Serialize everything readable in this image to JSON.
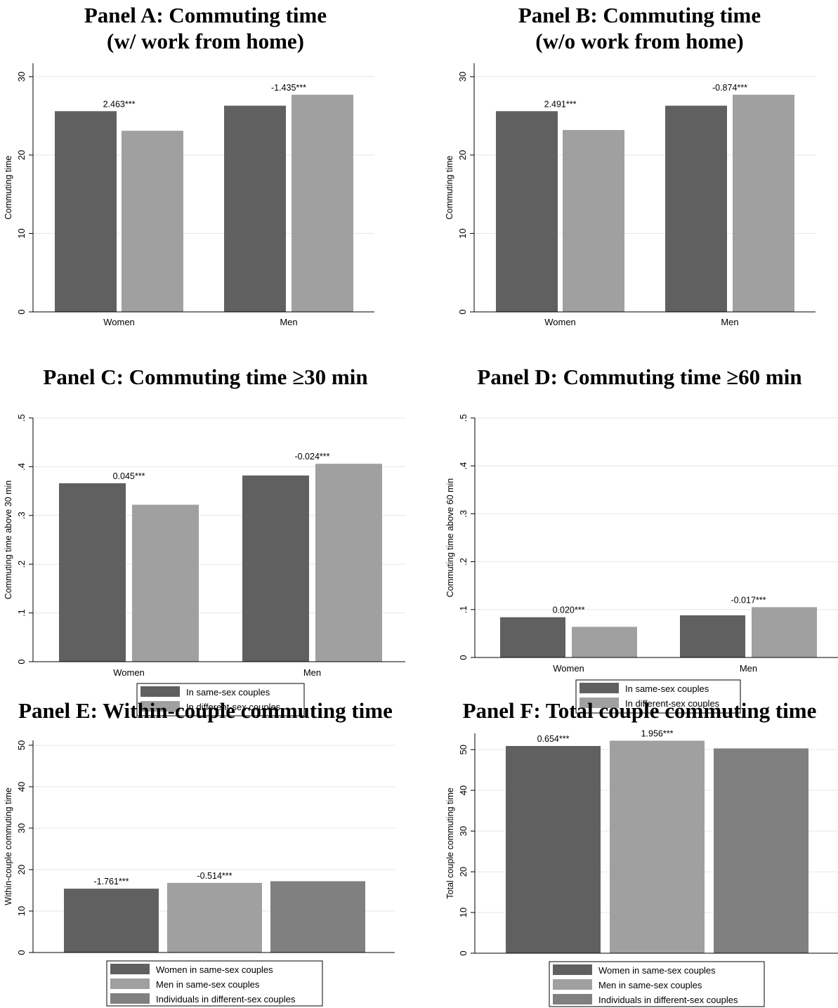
{
  "colors": {
    "dark": "#606060",
    "light": "#a0a0a0",
    "mid": "#808080",
    "grid": "#e6e6e6",
    "axis": "#000000"
  },
  "chart_data": [
    {
      "id": "A",
      "type": "bar",
      "title": [
        "Panel A: Commuting time",
        "(w/ work from home)"
      ],
      "ylabel": "Commuting time",
      "ylim": [
        0,
        31
      ],
      "yticks": [
        "0",
        "10",
        "20",
        "30"
      ],
      "ytick_values": [
        0,
        10,
        20,
        30
      ],
      "categories": [
        "Women",
        "Men"
      ],
      "series": [
        {
          "values": [
            25.6,
            26.3
          ],
          "color": "dark"
        },
        {
          "values": [
            23.1,
            27.7
          ],
          "color": "light"
        }
      ],
      "annotations": [
        "2.463***",
        "-1.435***"
      ]
    },
    {
      "id": "B",
      "type": "bar",
      "title": [
        "Panel B: Commuting time",
        "(w/o work from home)"
      ],
      "ylabel": "Commuting time",
      "ylim": [
        0,
        31
      ],
      "yticks": [
        "0",
        "10",
        "20",
        "30"
      ],
      "ytick_values": [
        0,
        10,
        20,
        30
      ],
      "categories": [
        "Women",
        "Men"
      ],
      "series": [
        {
          "values": [
            25.6,
            26.3
          ],
          "color": "dark"
        },
        {
          "values": [
            23.2,
            27.7
          ],
          "color": "light"
        }
      ],
      "annotations": [
        "2.491***",
        "-0.874***"
      ]
    },
    {
      "id": "C",
      "type": "bar",
      "title": [
        "Panel C: Commuting time ≥30 min"
      ],
      "ylabel": "Commuting time above 30 min",
      "ylim": [
        0,
        0.5
      ],
      "yticks": [
        "0",
        ".1",
        ".2",
        ".3",
        ".4",
        ".5"
      ],
      "ytick_values": [
        0,
        0.1,
        0.2,
        0.3,
        0.4,
        0.5
      ],
      "categories": [
        "Women",
        "Men"
      ],
      "series": [
        {
          "values": [
            0.366,
            0.382
          ],
          "color": "dark"
        },
        {
          "values": [
            0.322,
            0.406
          ],
          "color": "light"
        }
      ],
      "annotations": [
        "0.045***",
        "-0.024***"
      ],
      "legend": [
        "In same-sex couples",
        "In different-sex couples"
      ]
    },
    {
      "id": "D",
      "type": "bar",
      "title": [
        "Panel D: Commuting time ≥60 min"
      ],
      "ylabel": "Commuting time above 60 min",
      "ylim": [
        0,
        0.5
      ],
      "yticks": [
        "0",
        ".1",
        ".2",
        ".3",
        ".4",
        ".5"
      ],
      "ytick_values": [
        0,
        0.1,
        0.2,
        0.3,
        0.4,
        0.5
      ],
      "categories": [
        "Women",
        "Men"
      ],
      "series": [
        {
          "values": [
            0.084,
            0.088
          ],
          "color": "dark"
        },
        {
          "values": [
            0.064,
            0.105
          ],
          "color": "light"
        }
      ],
      "annotations": [
        "0.020***",
        "-0.017***"
      ],
      "legend": [
        "In same-sex couples",
        "In different-sex couples"
      ]
    },
    {
      "id": "E",
      "type": "bar",
      "title": [
        "Panel E: Within-couple commuting time"
      ],
      "ylabel": "Within-couple commuting time",
      "ylim": [
        0,
        50.5
      ],
      "yticks": [
        "0",
        "10",
        "20",
        "30",
        "40",
        "50"
      ],
      "ytick_values": [
        0,
        10,
        20,
        30,
        40,
        50
      ],
      "categories": [
        "Women in same-sex couples",
        "Men in same-sex couples",
        "Individuals in different-sex couples"
      ],
      "values": [
        15.4,
        16.8,
        17.2
      ],
      "colors": [
        "dark",
        "light",
        "mid"
      ],
      "annotations": [
        "-1.761***",
        "-0.514***",
        ""
      ],
      "legend": [
        "Women in same-sex couples",
        "Men in same-sex couples",
        "Individuals in different-sex couples"
      ]
    },
    {
      "id": "F",
      "type": "bar",
      "title": [
        "Panel F: Total couple commuting time"
      ],
      "ylabel": "Total couple commuting time",
      "ylim": [
        0,
        54
      ],
      "yticks": [
        "0",
        "10",
        "20",
        "30",
        "40",
        "50"
      ],
      "ytick_values": [
        0,
        10,
        20,
        30,
        40,
        50
      ],
      "categories": [
        "Women in same-sex couples",
        "Men in same-sex couples",
        "Individuals in different-sex couples"
      ],
      "values": [
        50.9,
        52.2,
        50.3
      ],
      "colors": [
        "dark",
        "light",
        "mid"
      ],
      "annotations": [
        "0.654***",
        "1.956***",
        ""
      ],
      "legend": [
        "Women in same-sex couples",
        "Men in same-sex couples",
        "Individuals in different-sex couples"
      ]
    }
  ]
}
